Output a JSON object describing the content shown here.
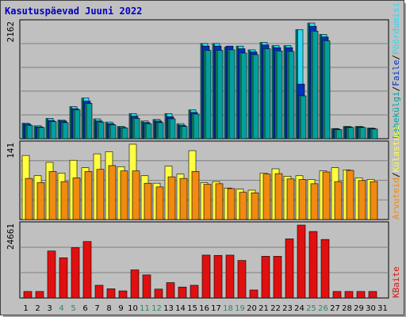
{
  "title": "Kasutuspäevad Juuni 2022",
  "colors": {
    "pages_dark": "#106a50",
    "pages": "#00a0a0",
    "files_dark": "#0030c0",
    "hits_dark": "#006060",
    "hits": "#30d8f0",
    "visits": "#ffff40",
    "sites": "#f08a10",
    "kbytes": "#e01010",
    "weekend": "#2a8a5a",
    "panel": "#c0c0c0",
    "grid": "#808080"
  },
  "chart_data": [
    {
      "type": "bar",
      "panel": "top",
      "ytick": "2162",
      "ymax": 2162,
      "x": [
        1,
        2,
        3,
        4,
        5,
        6,
        7,
        8,
        9,
        10,
        11,
        12,
        13,
        14,
        15,
        16,
        17,
        18,
        19,
        20,
        21,
        22,
        23,
        24,
        25,
        26,
        27,
        28,
        29,
        30,
        31
      ],
      "weekend_days": [
        4,
        5,
        11,
        12,
        18,
        19,
        25,
        26
      ],
      "legend": [
        {
          "label": "Pöördumisi",
          "color": "#30d8f0"
        },
        {
          "label": "/",
          "color": "#000000"
        },
        {
          "label": "Faile",
          "color": "#0030c0"
        },
        {
          "label": "/",
          "color": "#000000"
        },
        {
          "label": "Lehekülgi",
          "color": "#00a0a0"
        }
      ],
      "series": [
        {
          "name": "Pöördumisi",
          "values": [
            290,
            240,
            380,
            350,
            600,
            760,
            370,
            310,
            230,
            470,
            330,
            360,
            470,
            280,
            540,
            1780,
            1780,
            1710,
            1730,
            1660,
            1800,
            1740,
            1740,
            2040,
            2162,
            1950,
            190,
            230,
            230,
            200,
            null
          ]
        },
        {
          "name": "Faile",
          "values": [
            270,
            220,
            340,
            330,
            560,
            700,
            330,
            280,
            210,
            420,
            300,
            330,
            410,
            250,
            490,
            1730,
            1730,
            1730,
            1680,
            1620,
            1750,
            1700,
            1700,
            1020,
            2100,
            1900,
            180,
            220,
            220,
            190,
            null
          ]
        },
        {
          "name": "Lehekülgi",
          "values": [
            250,
            210,
            320,
            300,
            540,
            660,
            310,
            260,
            200,
            380,
            280,
            300,
            370,
            230,
            460,
            1650,
            1650,
            1660,
            1600,
            1570,
            1680,
            1640,
            1630,
            800,
            2010,
            1830,
            170,
            210,
            210,
            180,
            null
          ]
        }
      ]
    },
    {
      "type": "bar",
      "panel": "middle",
      "ytick": "141",
      "ymax": 141,
      "x": [
        1,
        2,
        3,
        4,
        5,
        6,
        7,
        8,
        9,
        10,
        11,
        12,
        13,
        14,
        15,
        16,
        17,
        18,
        19,
        20,
        21,
        22,
        23,
        24,
        25,
        26,
        27,
        28,
        29,
        30,
        31
      ],
      "legend": [
        {
          "label": "Külastusi",
          "color": "#ffff40"
        },
        {
          "label": "/",
          "color": "#000000"
        },
        {
          "label": "Arvuteid",
          "color": "#f08a10"
        }
      ],
      "series": [
        {
          "name": "Külastusi",
          "values": [
            120,
            82,
            107,
            87,
            111,
            97,
            123,
            127,
            99,
            141,
            82,
            68,
            100,
            85,
            129,
            69,
            71,
            59,
            57,
            55,
            87,
            95,
            81,
            82,
            75,
            91,
            97,
            93,
            78,
            75,
            null
          ]
        },
        {
          "name": "Arvuteid",
          "values": [
            77,
            69,
            90,
            71,
            78,
            90,
            94,
            101,
            91,
            91,
            68,
            61,
            80,
            77,
            90,
            66,
            67,
            58,
            51,
            50,
            85,
            86,
            76,
            75,
            67,
            89,
            71,
            92,
            73,
            71,
            null
          ]
        }
      ]
    },
    {
      "type": "bar",
      "panel": "bottom",
      "ytick": "24661",
      "ymax": 24661,
      "x": [
        1,
        2,
        3,
        4,
        5,
        6,
        7,
        8,
        9,
        10,
        11,
        12,
        13,
        14,
        15,
        16,
        17,
        18,
        19,
        20,
        21,
        22,
        23,
        24,
        25,
        26,
        27,
        28,
        29,
        30,
        31
      ],
      "legend": [
        {
          "label": "KBaite",
          "color": "#e01010"
        }
      ],
      "series": [
        {
          "name": "KBaite",
          "values": [
            2200,
            2200,
            15900,
            13600,
            17000,
            19100,
            4300,
            3100,
            2400,
            9500,
            7800,
            3000,
            5200,
            3700,
            4300,
            14500,
            14400,
            14500,
            12700,
            2700,
            14100,
            14100,
            20000,
            24661,
            22500,
            19800,
            2200,
            2200,
            2200,
            2200,
            null
          ]
        }
      ]
    }
  ]
}
